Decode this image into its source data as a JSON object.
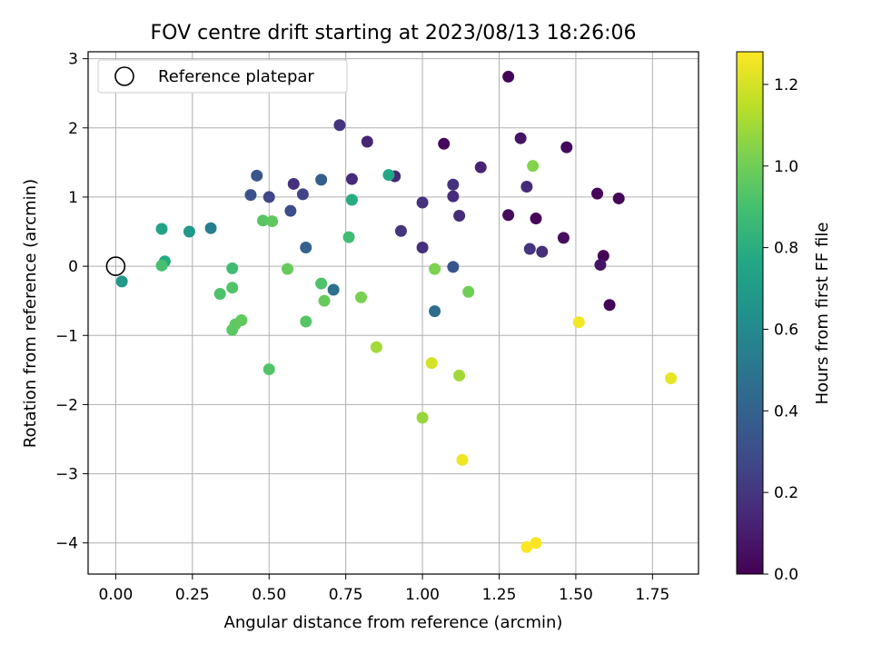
{
  "chart_data": {
    "type": "scatter",
    "title": "FOV centre drift starting at 2023/08/13 18:26:06",
    "xlabel": "Angular distance from reference (arcmin)",
    "ylabel": "Rotation from reference (arcmin)",
    "xlim": [
      -0.09,
      1.9
    ],
    "ylim": [
      -4.45,
      3.1
    ],
    "xticks": [
      "0.00",
      "0.25",
      "0.50",
      "0.75",
      "1.00",
      "1.25",
      "1.50",
      "1.75"
    ],
    "xtick_values": [
      0,
      0.25,
      0.5,
      0.75,
      1.0,
      1.25,
      1.5,
      1.75
    ],
    "yticks": [
      "−4",
      "−3",
      "−2",
      "−1",
      "0",
      "1",
      "2",
      "3"
    ],
    "ytick_values": [
      -4,
      -3,
      -2,
      -1,
      0,
      1,
      2,
      3
    ],
    "grid": true,
    "legend": {
      "label": "Reference platepar",
      "position": "top-left"
    },
    "reference_point": {
      "x": 0,
      "y": 0
    },
    "colorbar": {
      "label": "Hours from first FF file",
      "colormap": "viridis",
      "range": [
        0,
        1.28
      ],
      "ticks": [
        "0.0",
        "0.2",
        "0.4",
        "0.6",
        "0.8",
        "1.0",
        "1.2"
      ],
      "tick_values": [
        0,
        0.2,
        0.4,
        0.6,
        0.8,
        1.0,
        1.2
      ]
    },
    "points": [
      {
        "x": 1.28,
        "y": 2.74,
        "c": 0.02
      },
      {
        "x": 1.07,
        "y": 1.77,
        "c": 0.03
      },
      {
        "x": 1.32,
        "y": 1.85,
        "c": 0.07
      },
      {
        "x": 1.47,
        "y": 1.72,
        "c": 0.03
      },
      {
        "x": 1.57,
        "y": 1.05,
        "c": 0.02
      },
      {
        "x": 1.64,
        "y": 0.98,
        "c": 0.02
      },
      {
        "x": 1.28,
        "y": 0.74,
        "c": 0.04
      },
      {
        "x": 1.37,
        "y": 0.69,
        "c": 0.02
      },
      {
        "x": 1.46,
        "y": 0.41,
        "c": 0.05
      },
      {
        "x": 1.59,
        "y": 0.15,
        "c": 0.01
      },
      {
        "x": 1.58,
        "y": 0.02,
        "c": 0.07
      },
      {
        "x": 1.61,
        "y": -0.56,
        "c": 0.01
      },
      {
        "x": 1.19,
        "y": 1.43,
        "c": 0.12
      },
      {
        "x": 1.34,
        "y": 1.15,
        "c": 0.15
      },
      {
        "x": 1.1,
        "y": 1.18,
        "c": 0.18
      },
      {
        "x": 1.1,
        "y": 1.01,
        "c": 0.16
      },
      {
        "x": 1.12,
        "y": 0.73,
        "c": 0.15
      },
      {
        "x": 1.0,
        "y": 0.92,
        "c": 0.18
      },
      {
        "x": 1.35,
        "y": 0.25,
        "c": 0.19
      },
      {
        "x": 1.39,
        "y": 0.21,
        "c": 0.17
      },
      {
        "x": 1.0,
        "y": 0.27,
        "c": 0.17
      },
      {
        "x": 0.93,
        "y": 0.51,
        "c": 0.19
      },
      {
        "x": 0.82,
        "y": 1.8,
        "c": 0.13
      },
      {
        "x": 0.73,
        "y": 2.04,
        "c": 0.19
      },
      {
        "x": 0.91,
        "y": 1.3,
        "c": 0.14
      },
      {
        "x": 0.77,
        "y": 1.26,
        "c": 0.15
      },
      {
        "x": 0.58,
        "y": 1.19,
        "c": 0.18
      },
      {
        "x": 0.61,
        "y": 1.04,
        "c": 0.26
      },
      {
        "x": 0.5,
        "y": 1.0,
        "c": 0.27
      },
      {
        "x": 0.44,
        "y": 1.03,
        "c": 0.32
      },
      {
        "x": 0.46,
        "y": 1.31,
        "c": 0.34
      },
      {
        "x": 0.67,
        "y": 1.25,
        "c": 0.38
      },
      {
        "x": 0.57,
        "y": 0.8,
        "c": 0.3
      },
      {
        "x": 0.62,
        "y": 0.27,
        "c": 0.4
      },
      {
        "x": 1.1,
        "y": -0.01,
        "c": 0.34
      },
      {
        "x": 1.04,
        "y": -0.65,
        "c": 0.45
      },
      {
        "x": 0.71,
        "y": -0.34,
        "c": 0.47
      },
      {
        "x": 0.31,
        "y": 0.55,
        "c": 0.55
      },
      {
        "x": 0.24,
        "y": 0.5,
        "c": 0.68
      },
      {
        "x": 0.15,
        "y": 0.54,
        "c": 0.74
      },
      {
        "x": 0.89,
        "y": 1.32,
        "c": 0.76
      },
      {
        "x": 0.77,
        "y": 0.96,
        "c": 0.79
      },
      {
        "x": 0.02,
        "y": -0.22,
        "c": 0.68
      },
      {
        "x": 0.16,
        "y": 0.07,
        "c": 0.78
      },
      {
        "x": 0.15,
        "y": 0.01,
        "c": 0.9
      },
      {
        "x": 0.48,
        "y": 0.66,
        "c": 0.94
      },
      {
        "x": 0.51,
        "y": 0.65,
        "c": 0.96
      },
      {
        "x": 0.76,
        "y": 0.42,
        "c": 0.88
      },
      {
        "x": 0.38,
        "y": -0.03,
        "c": 0.88
      },
      {
        "x": 0.56,
        "y": -0.04,
        "c": 0.98
      },
      {
        "x": 0.34,
        "y": -0.4,
        "c": 0.92
      },
      {
        "x": 0.38,
        "y": -0.31,
        "c": 0.93
      },
      {
        "x": 0.67,
        "y": -0.25,
        "c": 0.92
      },
      {
        "x": 0.68,
        "y": -0.5,
        "c": 0.98
      },
      {
        "x": 0.62,
        "y": -0.8,
        "c": 0.94
      },
      {
        "x": 0.8,
        "y": -0.45,
        "c": 1.02
      },
      {
        "x": 0.38,
        "y": -0.92,
        "c": 0.95
      },
      {
        "x": 0.39,
        "y": -0.84,
        "c": 0.96
      },
      {
        "x": 0.41,
        "y": -0.78,
        "c": 0.97
      },
      {
        "x": 0.5,
        "y": -1.49,
        "c": 0.93
      },
      {
        "x": 1.04,
        "y": -0.04,
        "c": 1.03
      },
      {
        "x": 1.15,
        "y": -0.37,
        "c": 1.0
      },
      {
        "x": 1.36,
        "y": 1.45,
        "c": 1.04
      },
      {
        "x": 0.85,
        "y": -1.17,
        "c": 1.1
      },
      {
        "x": 1.0,
        "y": -2.19,
        "c": 1.08
      },
      {
        "x": 1.12,
        "y": -1.58,
        "c": 1.1
      },
      {
        "x": 1.03,
        "y": -1.4,
        "c": 1.2
      },
      {
        "x": 1.13,
        "y": -2.8,
        "c": 1.25
      },
      {
        "x": 1.34,
        "y": -4.06,
        "c": 1.28
      },
      {
        "x": 1.37,
        "y": -4.0,
        "c": 1.27
      },
      {
        "x": 1.51,
        "y": -0.81,
        "c": 1.26
      },
      {
        "x": 1.81,
        "y": -1.62,
        "c": 1.24
      }
    ]
  }
}
